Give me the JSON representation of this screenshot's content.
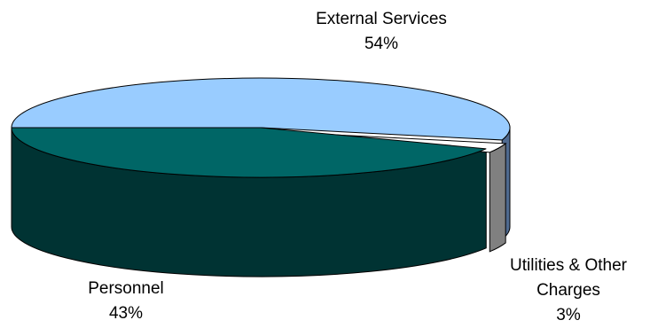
{
  "chart_data": {
    "type": "pie",
    "style": "3d-exploded-oval",
    "title": "",
    "categories": [
      "External Services",
      "Utilities & Other Charges",
      "Personnel"
    ],
    "values": [
      54,
      3,
      43
    ],
    "labels": [
      {
        "name": "External Services",
        "percent": "54%"
      },
      {
        "name": "Utilities & Other Charges",
        "percent": "3%"
      },
      {
        "name": "Personnel",
        "percent": "43%"
      }
    ],
    "colors": {
      "External Services": "#99ccff",
      "Utilities & Other Charges": "#ffffff",
      "Personnel": "#006666"
    },
    "side_colors": {
      "External Services": "#4f6a8f",
      "Utilities & Other Charges": "#808080",
      "Personnel": "#003333"
    },
    "legend": "none",
    "data_labels": "outside"
  }
}
